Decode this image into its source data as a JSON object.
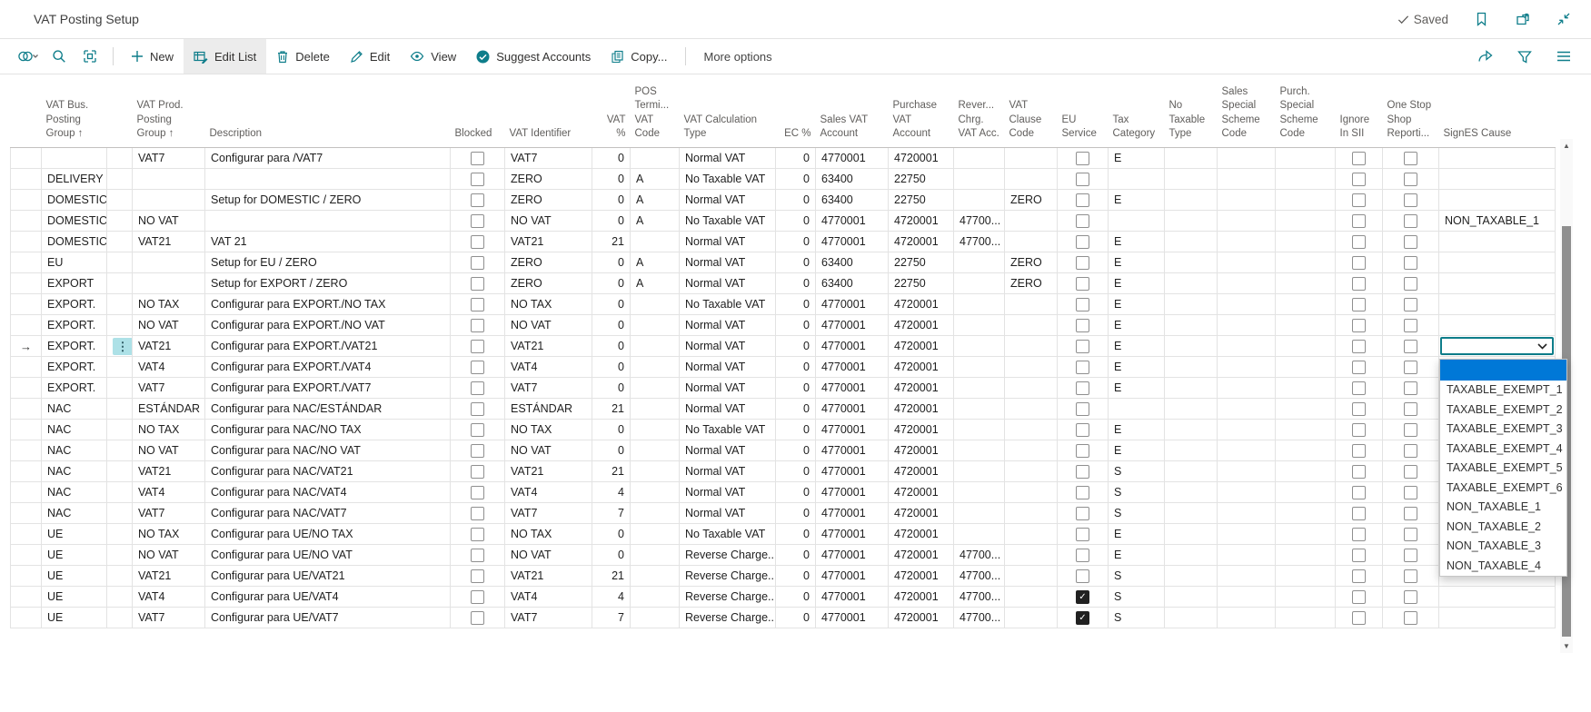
{
  "page": {
    "title": "VAT Posting Setup",
    "save_status": "Saved"
  },
  "colors": {
    "accent_teal": "#0e7d8a",
    "selection_highlight": "#0078d7",
    "row_marker_bg": "#ade1e7"
  },
  "toolbar": {
    "new_label": "New",
    "edit_list_label": "Edit List",
    "delete_label": "Delete",
    "edit_label": "Edit",
    "view_label": "View",
    "suggest_accounts_label": "Suggest Accounts",
    "copy_label": "Copy...",
    "more_options_label": "More options",
    "active_button": "Edit List"
  },
  "grid": {
    "columns": [
      {
        "key": "bus",
        "label": "VAT Bus. Posting Group",
        "sorted": true
      },
      {
        "key": "prod",
        "label": "VAT Prod. Posting Group",
        "sorted": true
      },
      {
        "key": "desc",
        "label": "Description"
      },
      {
        "key": "blocked",
        "label": "Blocked",
        "type": "check"
      },
      {
        "key": "id",
        "label": "VAT Identifier"
      },
      {
        "key": "vat",
        "label": "VAT %",
        "align": "right"
      },
      {
        "key": "pos",
        "label": "POS Termi... VAT Code"
      },
      {
        "key": "calc",
        "label": "VAT Calculation Type"
      },
      {
        "key": "ec",
        "label": "EC %",
        "align": "right"
      },
      {
        "key": "sales",
        "label": "Sales VAT Account"
      },
      {
        "key": "purch",
        "label": "Purchase VAT Account"
      },
      {
        "key": "rev",
        "label": "Rever... Chrg. VAT Acc."
      },
      {
        "key": "clause",
        "label": "VAT Clause Code"
      },
      {
        "key": "eu",
        "label": "EU Service",
        "type": "check"
      },
      {
        "key": "tax",
        "label": "Tax Category"
      },
      {
        "key": "ntype",
        "label": "No Taxable Type"
      },
      {
        "key": "sscheme",
        "label": "Sales Special Scheme Code"
      },
      {
        "key": "pscheme",
        "label": "Purch. Special Scheme Code"
      },
      {
        "key": "sii",
        "label": "Ignore In SII",
        "type": "check"
      },
      {
        "key": "oss",
        "label": "One Stop Shop Reporti...",
        "type": "check"
      },
      {
        "key": "signes",
        "label": "SignES Cause"
      }
    ],
    "rows": [
      {
        "prod": "VAT7",
        "desc": "Configurar para /VAT7",
        "id": "VAT7",
        "vat": "0",
        "calc": "Normal VAT",
        "ec": "0",
        "sales": "4770001",
        "purch": "4720001",
        "tax": "E"
      },
      {
        "bus": "DELIVERY",
        "id": "ZERO",
        "vat": "0",
        "pos": "A",
        "calc": "No Taxable VAT",
        "ec": "0",
        "sales": "63400",
        "purch": "22750"
      },
      {
        "bus": "DOMESTIC",
        "desc": "Setup for DOMESTIC / ZERO",
        "id": "ZERO",
        "vat": "0",
        "pos": "A",
        "calc": "Normal VAT",
        "ec": "0",
        "sales": "63400",
        "purch": "22750",
        "clause": "ZERO",
        "tax": "E"
      },
      {
        "bus": "DOMESTIC",
        "prod": "NO VAT",
        "id": "NO VAT",
        "vat": "0",
        "pos": "A",
        "calc": "No Taxable VAT",
        "ec": "0",
        "sales": "4770001",
        "purch": "4720001",
        "rev": "47700...",
        "signes": "NON_TAXABLE_1"
      },
      {
        "bus": "DOMESTIC",
        "prod": "VAT21",
        "desc": "VAT 21",
        "id": "VAT21",
        "vat": "21",
        "calc": "Normal VAT",
        "ec": "0",
        "sales": "4770001",
        "purch": "4720001",
        "rev": "47700...",
        "tax": "E"
      },
      {
        "bus": "EU",
        "desc": "Setup for EU / ZERO",
        "id": "ZERO",
        "vat": "0",
        "pos": "A",
        "calc": "Normal VAT",
        "ec": "0",
        "sales": "63400",
        "purch": "22750",
        "clause": "ZERO",
        "tax": "E"
      },
      {
        "bus": "EXPORT",
        "desc": "Setup for EXPORT / ZERO",
        "id": "ZERO",
        "vat": "0",
        "pos": "A",
        "calc": "Normal VAT",
        "ec": "0",
        "sales": "63400",
        "purch": "22750",
        "clause": "ZERO",
        "tax": "E"
      },
      {
        "bus": "EXPORT.",
        "prod": "NO TAX",
        "desc": "Configurar para EXPORT./NO TAX",
        "id": "NO TAX",
        "vat": "0",
        "calc": "No Taxable VAT",
        "ec": "0",
        "sales": "4770001",
        "purch": "4720001",
        "tax": "E"
      },
      {
        "bus": "EXPORT.",
        "prod": "NO VAT",
        "desc": "Configurar para EXPORT./NO VAT",
        "id": "NO VAT",
        "vat": "0",
        "calc": "Normal VAT",
        "ec": "0",
        "sales": "4770001",
        "purch": "4720001",
        "tax": "E"
      },
      {
        "bus": "EXPORT.",
        "prod": "VAT21",
        "desc": "Configurar para EXPORT./VAT21",
        "id": "VAT21",
        "vat": "0",
        "calc": "Normal VAT",
        "ec": "0",
        "sales": "4770001",
        "purch": "4720001",
        "tax": "E",
        "sel": true
      },
      {
        "bus": "EXPORT.",
        "prod": "VAT4",
        "desc": "Configurar para EXPORT./VAT4",
        "id": "VAT4",
        "vat": "0",
        "calc": "Normal VAT",
        "ec": "0",
        "sales": "4770001",
        "purch": "4720001",
        "tax": "E"
      },
      {
        "bus": "EXPORT.",
        "prod": "VAT7",
        "desc": "Configurar para EXPORT./VAT7",
        "id": "VAT7",
        "vat": "0",
        "calc": "Normal VAT",
        "ec": "0",
        "sales": "4770001",
        "purch": "4720001",
        "tax": "E"
      },
      {
        "bus": "NAC",
        "prod": "ESTÁNDAR",
        "desc": "Configurar para NAC/ESTÁNDAR",
        "id": "ESTÁNDAR",
        "vat": "21",
        "calc": "Normal VAT",
        "ec": "0",
        "sales": "4770001",
        "purch": "4720001"
      },
      {
        "bus": "NAC",
        "prod": "NO TAX",
        "desc": "Configurar para NAC/NO TAX",
        "id": "NO TAX",
        "vat": "0",
        "calc": "No Taxable VAT",
        "ec": "0",
        "sales": "4770001",
        "purch": "4720001",
        "tax": "E"
      },
      {
        "bus": "NAC",
        "prod": "NO VAT",
        "desc": "Configurar para NAC/NO VAT",
        "id": "NO VAT",
        "vat": "0",
        "calc": "Normal VAT",
        "ec": "0",
        "sales": "4770001",
        "purch": "4720001",
        "tax": "E"
      },
      {
        "bus": "NAC",
        "prod": "VAT21",
        "desc": "Configurar para NAC/VAT21",
        "id": "VAT21",
        "vat": "21",
        "calc": "Normal VAT",
        "ec": "0",
        "sales": "4770001",
        "purch": "4720001",
        "tax": "S"
      },
      {
        "bus": "NAC",
        "prod": "VAT4",
        "desc": "Configurar para NAC/VAT4",
        "id": "VAT4",
        "vat": "4",
        "calc": "Normal VAT",
        "ec": "0",
        "sales": "4770001",
        "purch": "4720001",
        "tax": "S"
      },
      {
        "bus": "NAC",
        "prod": "VAT7",
        "desc": "Configurar para NAC/VAT7",
        "id": "VAT7",
        "vat": "7",
        "calc": "Normal VAT",
        "ec": "0",
        "sales": "4770001",
        "purch": "4720001",
        "tax": "S"
      },
      {
        "bus": "UE",
        "prod": "NO TAX",
        "desc": "Configurar para UE/NO TAX",
        "id": "NO TAX",
        "vat": "0",
        "calc": "No Taxable VAT",
        "ec": "0",
        "sales": "4770001",
        "purch": "4720001",
        "tax": "E"
      },
      {
        "bus": "UE",
        "prod": "NO VAT",
        "desc": "Configurar para UE/NO VAT",
        "id": "NO VAT",
        "vat": "0",
        "calc": "Reverse Charge...",
        "ec": "0",
        "sales": "4770001",
        "purch": "4720001",
        "rev": "47700...",
        "tax": "E"
      },
      {
        "bus": "UE",
        "prod": "VAT21",
        "desc": "Configurar para UE/VAT21",
        "id": "VAT21",
        "vat": "21",
        "calc": "Reverse Charge...",
        "ec": "0",
        "sales": "4770001",
        "purch": "4720001",
        "rev": "47700...",
        "tax": "S"
      },
      {
        "bus": "UE",
        "prod": "VAT4",
        "desc": "Configurar para UE/VAT4",
        "id": "VAT4",
        "vat": "4",
        "calc": "Reverse Charge...",
        "ec": "0",
        "sales": "4770001",
        "purch": "4720001",
        "rev": "47700...",
        "eu": true,
        "tax": "S"
      },
      {
        "bus": "UE",
        "prod": "VAT7",
        "desc": "Configurar para UE/VAT7",
        "id": "VAT7",
        "vat": "7",
        "calc": "Reverse Charge...",
        "ec": "0",
        "sales": "4770001",
        "purch": "4720001",
        "rev": "47700...",
        "eu": true,
        "tax": "S"
      }
    ],
    "signes_dropdown": {
      "anchor_row_index": 9,
      "highlighted_index": 0,
      "options": [
        "",
        "TAXABLE_EXEMPT_1",
        "TAXABLE_EXEMPT_2",
        "TAXABLE_EXEMPT_3",
        "TAXABLE_EXEMPT_4",
        "TAXABLE_EXEMPT_5",
        "TAXABLE_EXEMPT_6",
        "NON_TAXABLE_1",
        "NON_TAXABLE_2",
        "NON_TAXABLE_3",
        "NON_TAXABLE_4"
      ]
    }
  }
}
